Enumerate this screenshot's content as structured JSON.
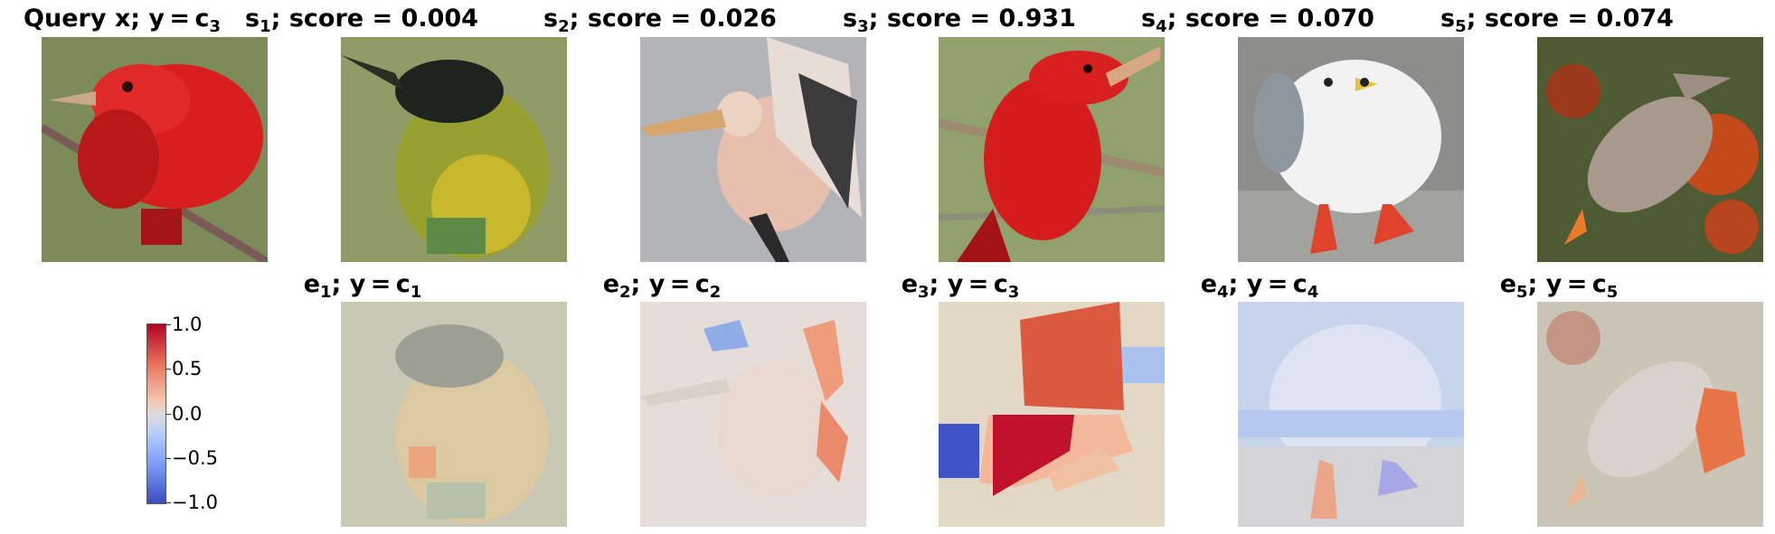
{
  "titles_top": [
    {
      "pre": "Query x; y = c",
      "sub": "3",
      "post": ""
    },
    {
      "pre": "s",
      "sub": "1",
      "post": "; score = 0.004"
    },
    {
      "pre": "s",
      "sub": "2",
      "post": "; score = 0.026"
    },
    {
      "pre": "s",
      "sub": "3",
      "post": "; score = 0.931"
    },
    {
      "pre": "s",
      "sub": "4",
      "post": "; score = 0.070"
    },
    {
      "pre": "s",
      "sub": "5",
      "post": "; score = 0.074"
    }
  ],
  "titles_bottom": [
    {
      "pre": "e",
      "sub": "1",
      "mid": "; y = c",
      "sub2": "1"
    },
    {
      "pre": "e",
      "sub": "2",
      "mid": "; y = c",
      "sub2": "2"
    },
    {
      "pre": "e",
      "sub": "3",
      "mid": "; y = c",
      "sub2": "3"
    },
    {
      "pre": "e",
      "sub": "4",
      "mid": "; y = c",
      "sub2": "4"
    },
    {
      "pre": "e",
      "sub": "5",
      "mid": "; y = c",
      "sub2": "5"
    }
  ],
  "colorbar": {
    "ticks": [
      "1.0",
      "0.5",
      "0.0",
      "−0.5",
      "−1.0"
    ]
  },
  "images": {
    "query": "red bird (summer tanager) on branch",
    "s1": "green-yellow bird with black head",
    "s2": "pelican spreading wings",
    "s3": "red bird (summer tanager) on branch",
    "s4": "white gull with red feet",
    "s5": "grey waxwing with orange berries"
  }
}
